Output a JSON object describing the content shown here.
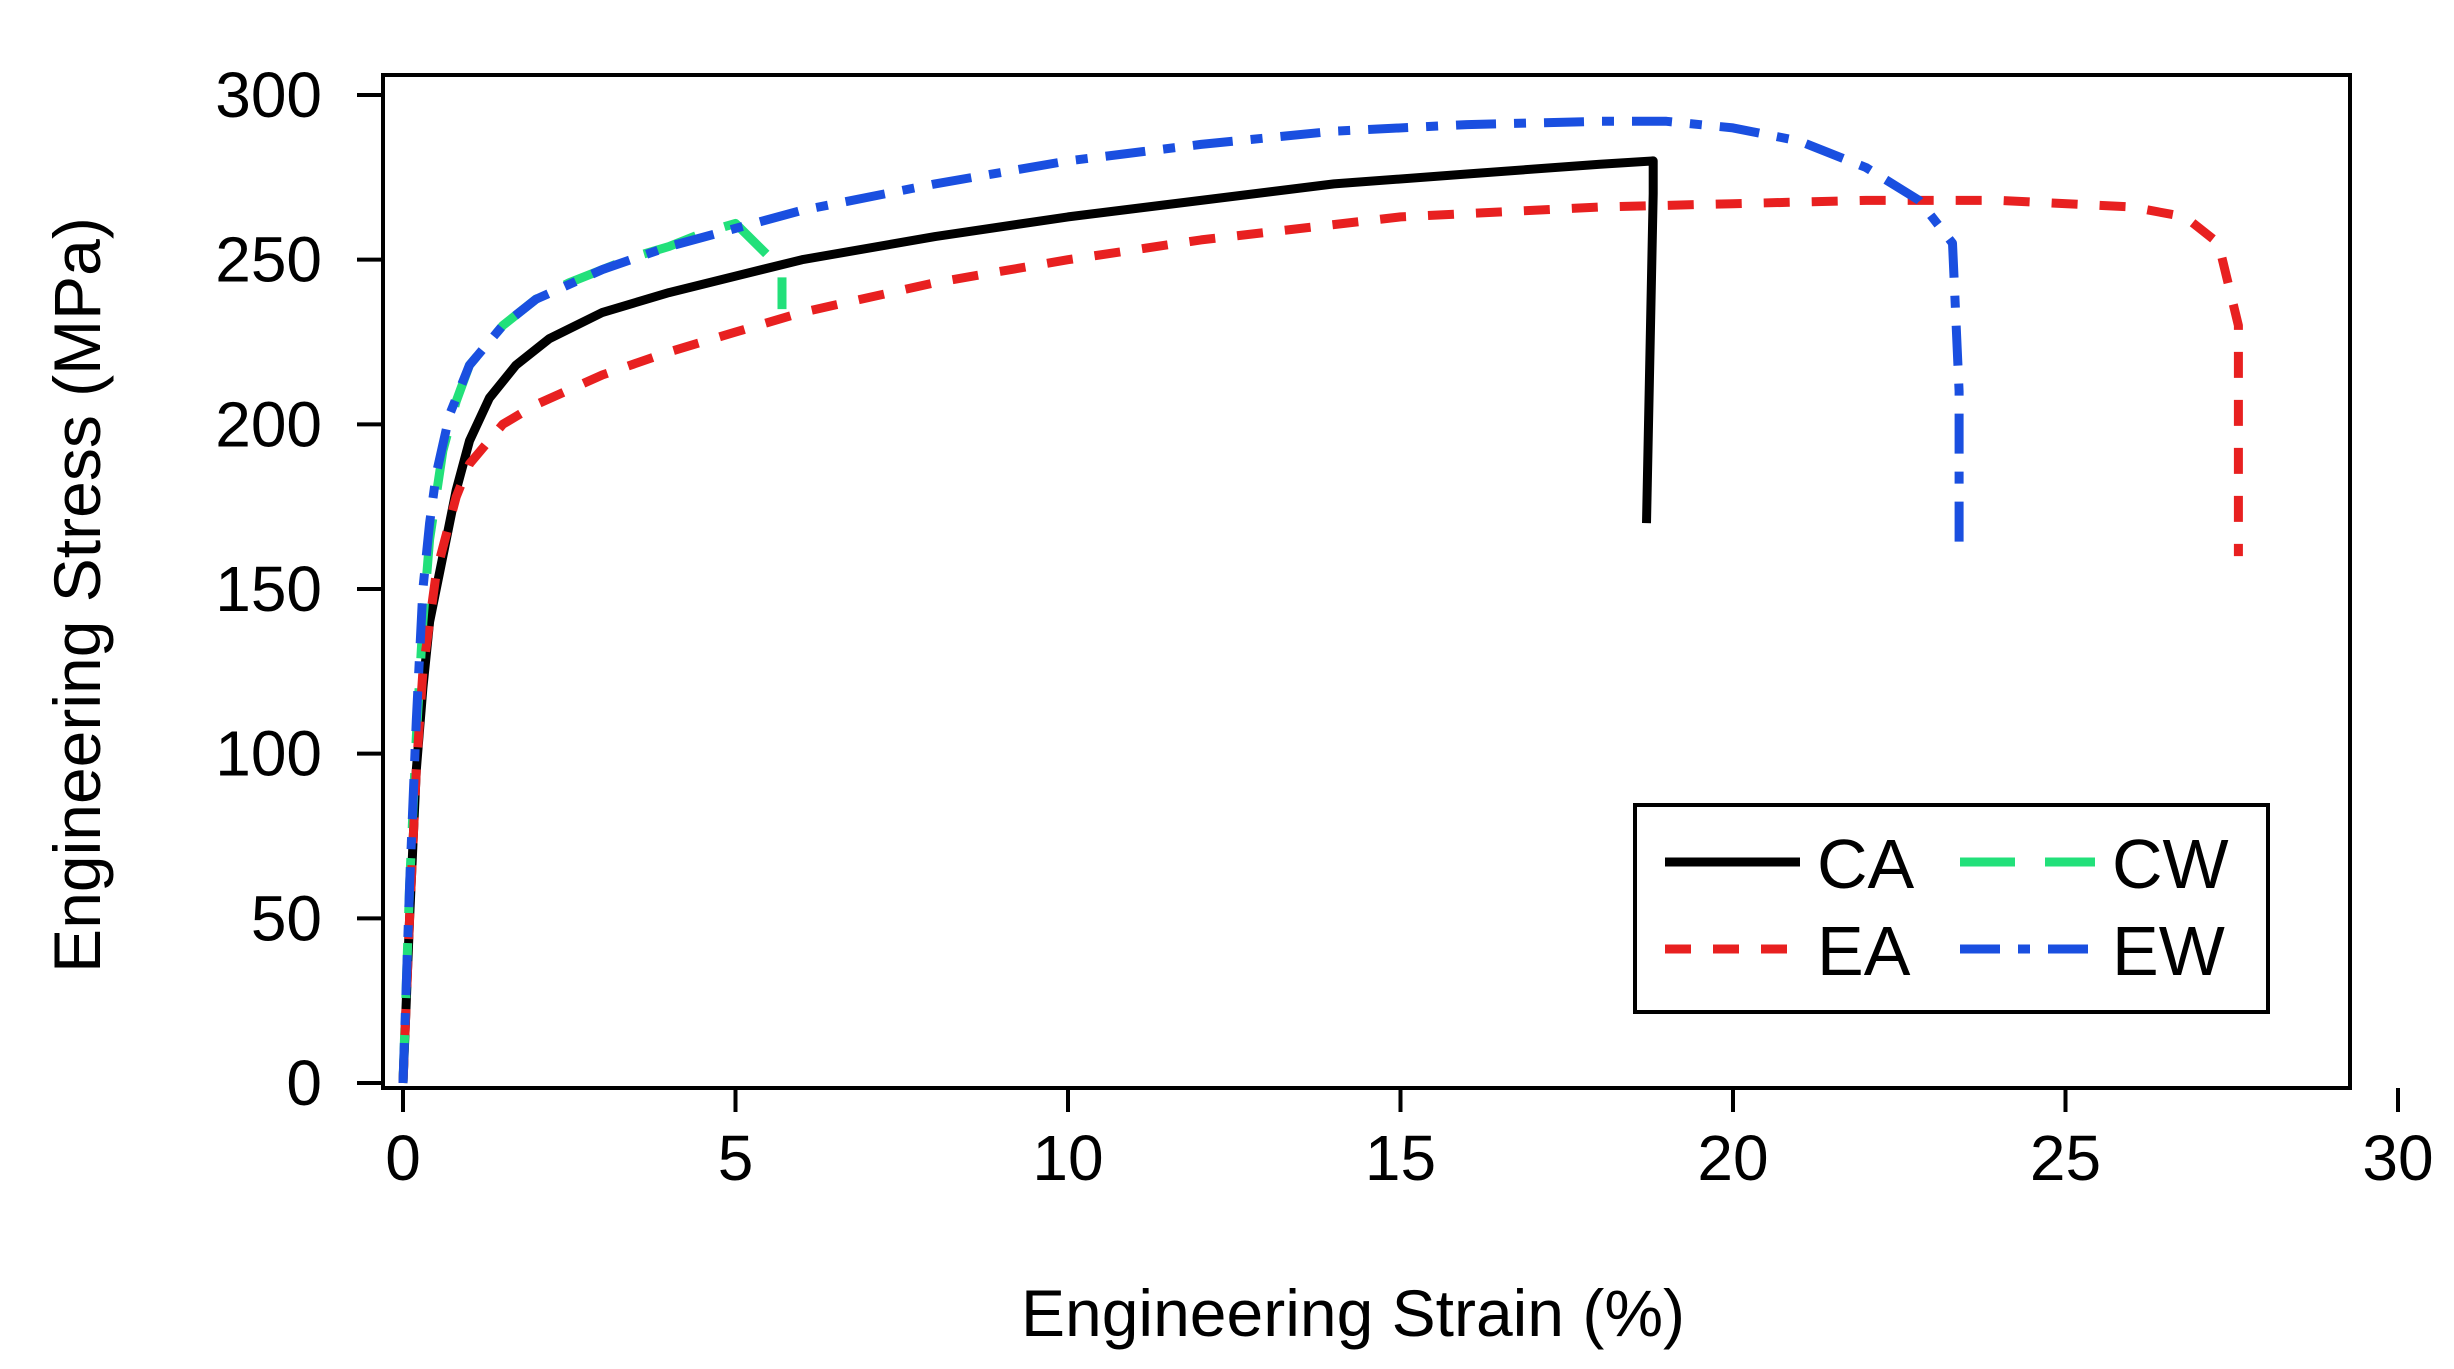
{
  "chart_data": {
    "type": "line",
    "title": "",
    "xlabel": "Engineering Strain (%)",
    "ylabel": "Engineering Stress (MPa)",
    "xlim": [
      0,
      30
    ],
    "ylim": [
      0,
      300
    ],
    "xticks": [
      0,
      5,
      10,
      15,
      20,
      25,
      30
    ],
    "yticks": [
      0,
      50,
      100,
      150,
      200,
      250,
      300
    ],
    "grid": false,
    "legend_position": "bottom-right",
    "series": [
      {
        "name": "CA",
        "color": "#000000",
        "style": "solid",
        "x": [
          0,
          0.1,
          0.2,
          0.3,
          0.4,
          0.6,
          0.8,
          1.0,
          1.3,
          1.7,
          2.2,
          3.0,
          4.0,
          5.0,
          6.0,
          8.0,
          10.0,
          12.0,
          14.0,
          16.0,
          18.0,
          18.8,
          18.8,
          18.7
        ],
        "y": [
          0,
          50,
          95,
          120,
          140,
          160,
          180,
          195,
          208,
          218,
          226,
          234,
          240,
          245,
          250,
          257,
          263,
          268,
          273,
          276,
          279,
          280,
          270,
          170
        ]
      },
      {
        "name": "CW",
        "color": "#22e07a",
        "style": "dashed",
        "x": [
          0,
          0.1,
          0.2,
          0.3,
          0.4,
          0.6,
          0.8,
          1.0,
          1.5,
          2.0,
          2.5,
          3.0,
          3.5,
          4.0,
          4.5,
          5.0,
          5.7,
          5.7
        ],
        "y": [
          0,
          60,
          105,
          140,
          165,
          192,
          207,
          218,
          230,
          238,
          243,
          247,
          251,
          254,
          258,
          261,
          247,
          235
        ]
      },
      {
        "name": "EA",
        "color": "#e82020",
        "style": "dotted",
        "x": [
          0,
          0.1,
          0.2,
          0.3,
          0.5,
          0.8,
          1.0,
          1.5,
          2.0,
          3.0,
          4.0,
          5.0,
          6.0,
          8.0,
          10.0,
          12.0,
          15.0,
          18.0,
          20.0,
          22.0,
          24.0,
          26.0,
          26.8,
          27.3,
          27.6,
          27.6
        ],
        "y": [
          0,
          50,
          95,
          125,
          155,
          178,
          188,
          200,
          206,
          215,
          222,
          228,
          234,
          243,
          250,
          256,
          263,
          266,
          267,
          268,
          268,
          266,
          263,
          255,
          230,
          160
        ]
      },
      {
        "name": "EW",
        "color": "#1a4fe0",
        "style": "dashdot",
        "x": [
          0,
          0.1,
          0.2,
          0.3,
          0.4,
          0.5,
          0.7,
          1.0,
          1.5,
          2.0,
          3.0,
          4.0,
          6.0,
          8.0,
          10.0,
          12.0,
          14.0,
          16.0,
          18.0,
          19.0,
          20.0,
          21.0,
          22.0,
          22.8,
          23.3,
          23.4,
          23.4
        ],
        "y": [
          0,
          60,
          110,
          150,
          170,
          185,
          203,
          218,
          230,
          238,
          247,
          254,
          265,
          273,
          280,
          285,
          289,
          291,
          292,
          292,
          290,
          286,
          278,
          268,
          255,
          210,
          160
        ]
      }
    ],
    "legend": [
      {
        "name": "CA",
        "color": "#000000",
        "style": "solid"
      },
      {
        "name": "CW",
        "color": "#22e07a",
        "style": "dashed"
      },
      {
        "name": "EA",
        "color": "#e82020",
        "style": "dotted"
      },
      {
        "name": "EW",
        "color": "#1a4fe0",
        "style": "dashdot"
      }
    ]
  }
}
